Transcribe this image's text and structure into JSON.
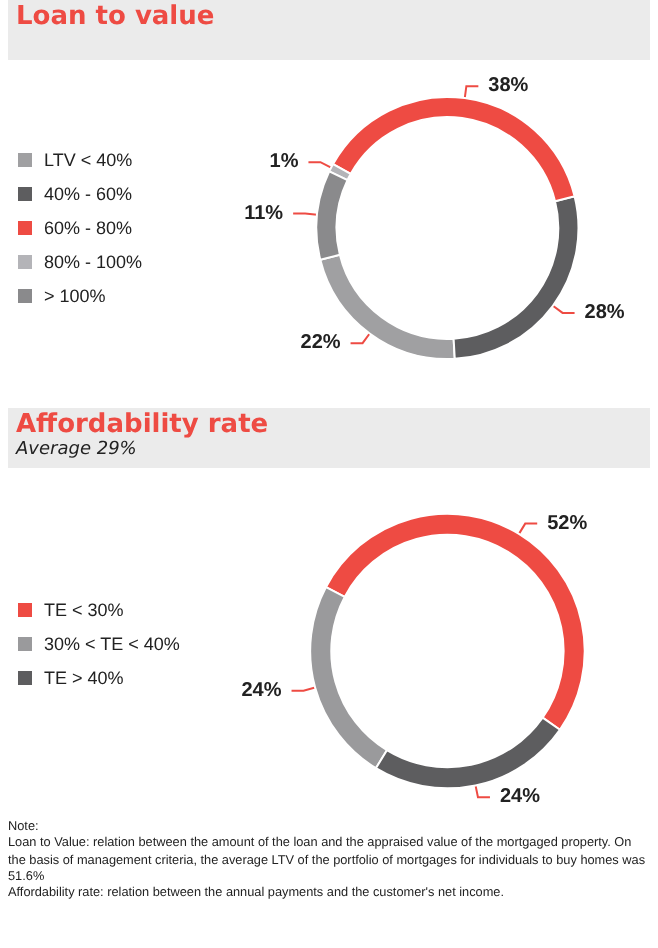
{
  "chart_data": [
    {
      "type": "donut",
      "title": "Loan to value",
      "categories": [
        "LTV < 40%",
        "40% - 60%",
        "60% - 80%",
        "80% - 100%",
        "> 100%"
      ],
      "values": [
        22,
        28,
        38,
        1,
        11
      ],
      "value_labels": [
        "22%",
        "28%",
        "38%",
        "1%",
        "11%"
      ],
      "colors": [
        "#a0a0a2",
        "#5d5d5f",
        "#ee4b43",
        "#b4b4b8",
        "#8a8a8c"
      ],
      "legend": "left"
    },
    {
      "type": "donut",
      "title": "Affordability rate",
      "subtitle": "Average 29%",
      "categories": [
        "TE < 30%",
        "30% < TE < 40%",
        "TE > 40%"
      ],
      "values": [
        52,
        24,
        24
      ],
      "value_labels": [
        "52%",
        "24%",
        "24%"
      ],
      "colors": [
        "#ee4b43",
        "#9a9a9c",
        "#5d5d5f"
      ],
      "legend": "left",
      "annotations": [
        "Note:",
        "Loan to Value: relation between the amount of the loan and the appraised value of the mortgaged property. On the basis of management criteria, the average LTV of the portfolio of mortgages for individuals to buy homes was 51.6%",
        "Affordability rate: relation between the annual payments and the customer's net income."
      ]
    }
  ]
}
